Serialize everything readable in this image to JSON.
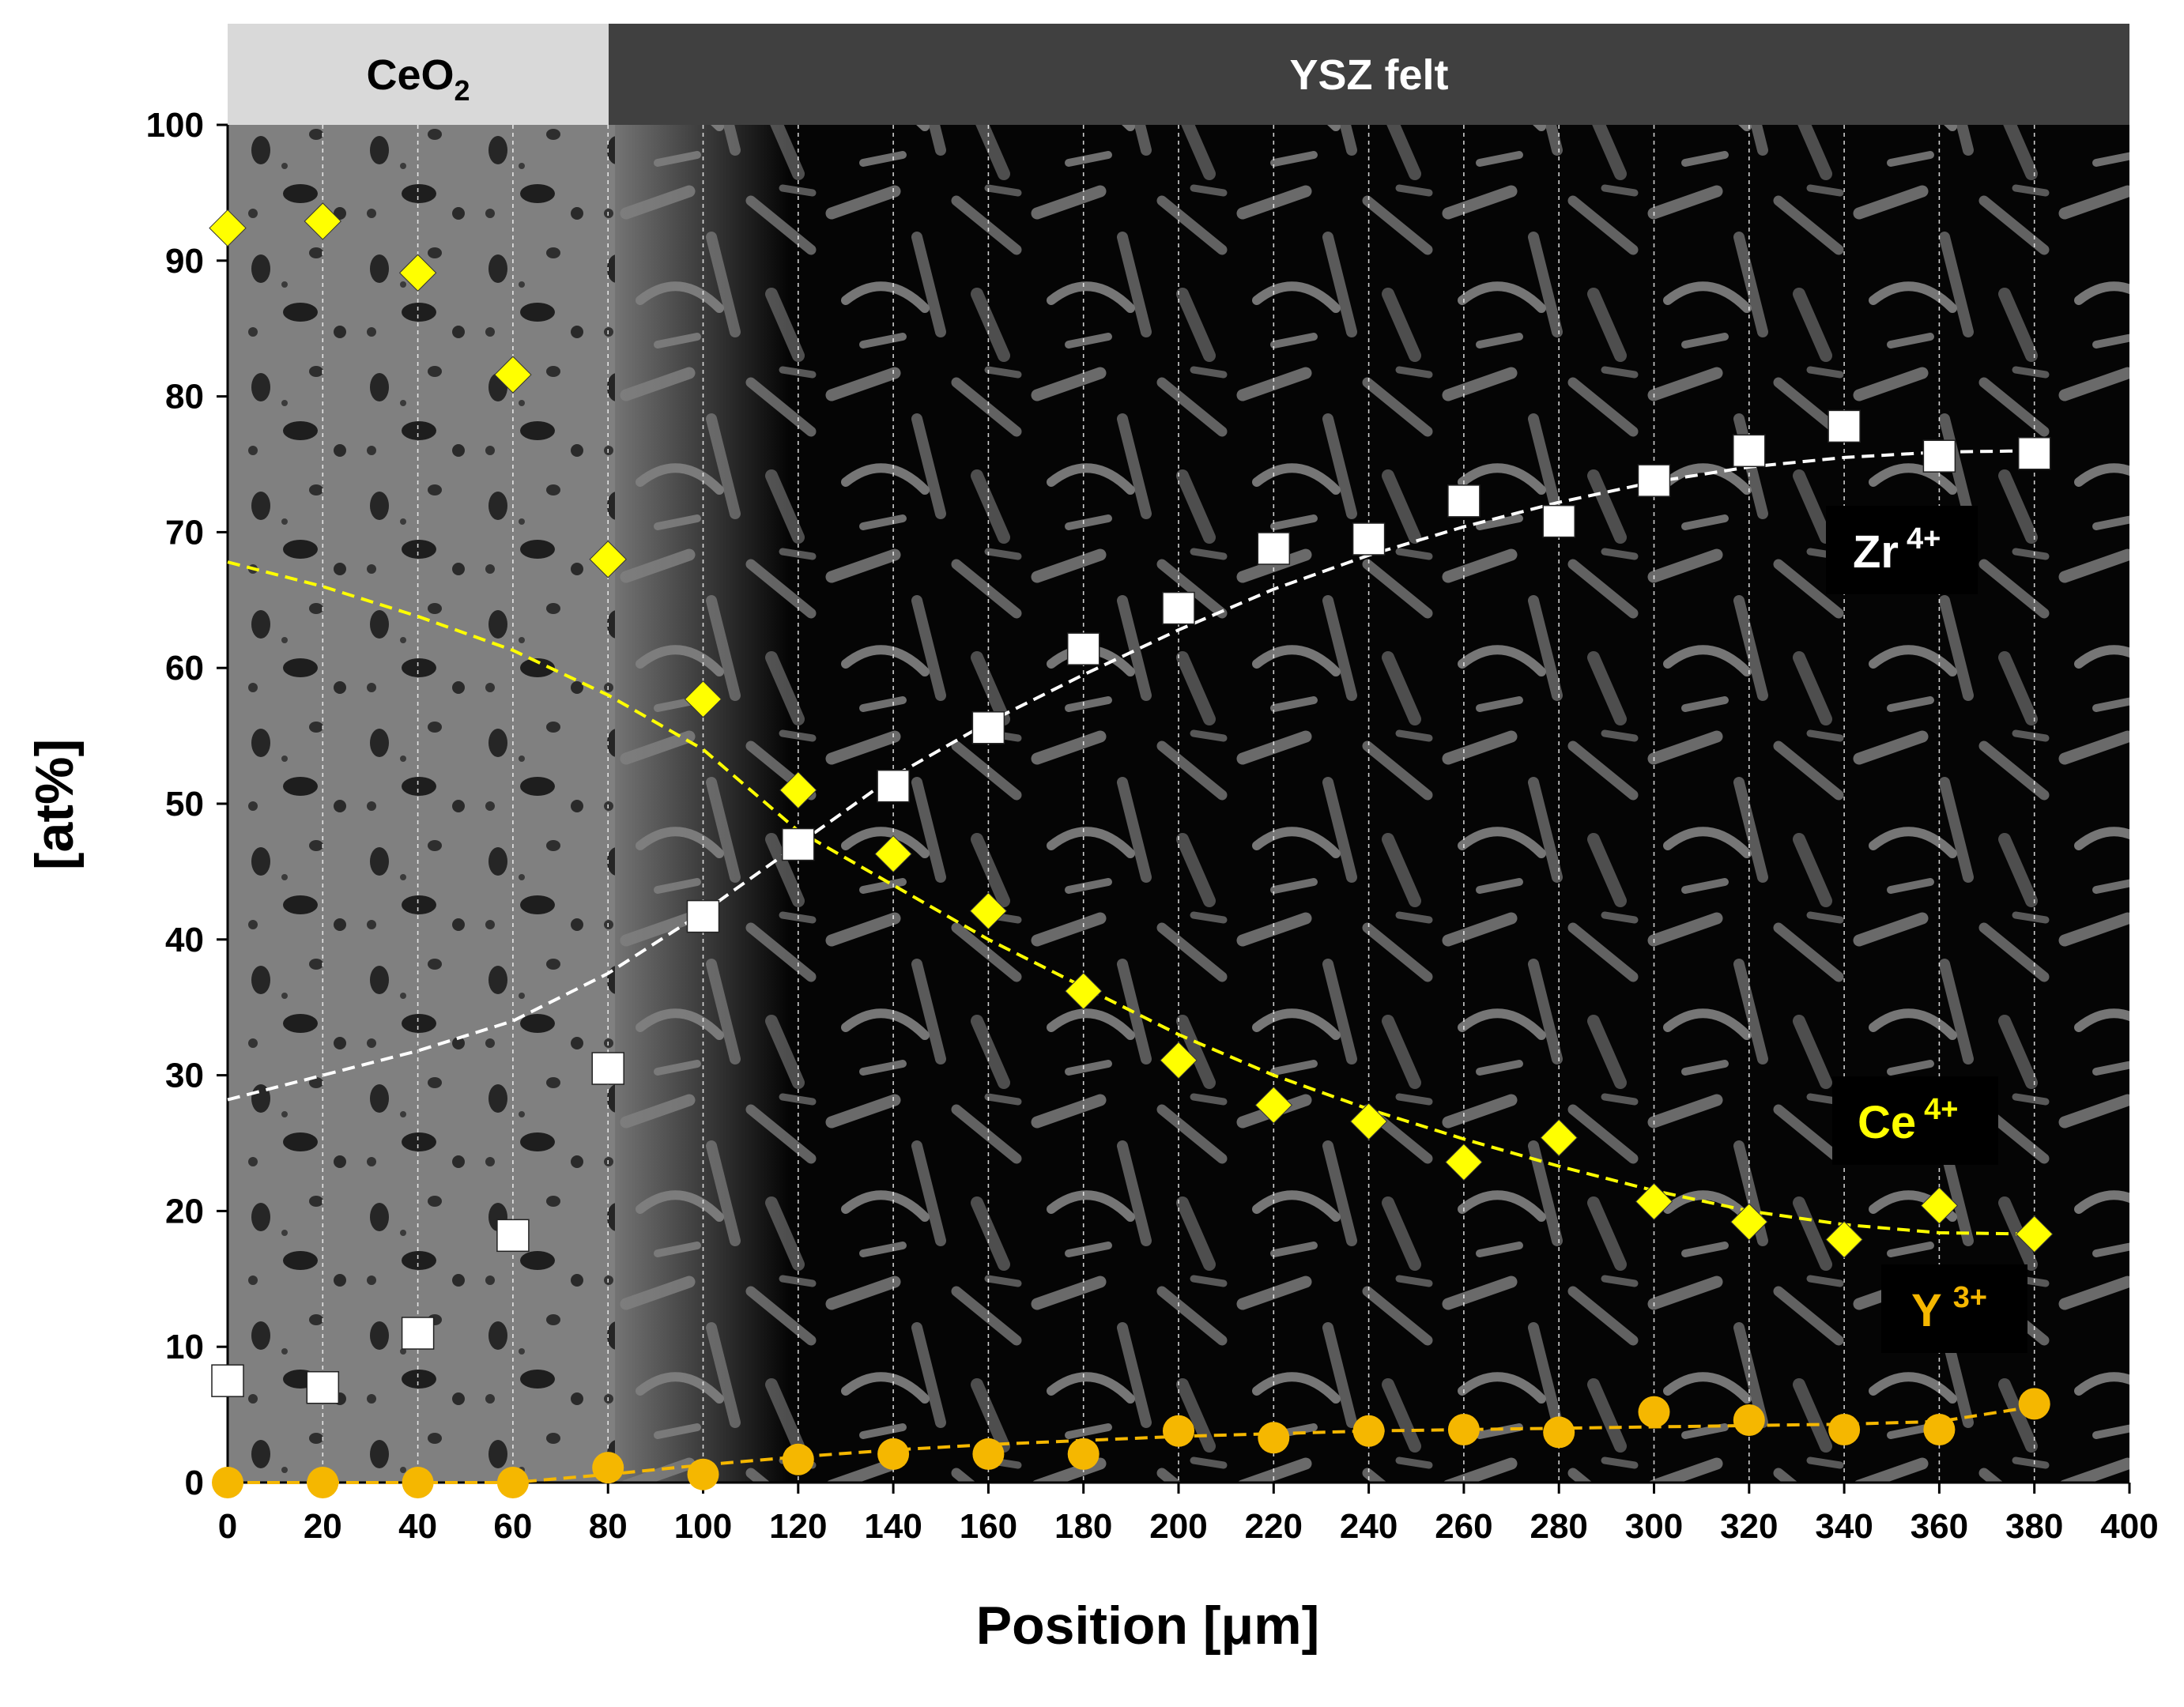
{
  "chart_data": {
    "type": "scatter",
    "title": "",
    "xlabel": "Position [μm]",
    "ylabel": "[at%]",
    "xlim": [
      0,
      400
    ],
    "ylim": [
      0,
      100
    ],
    "x_ticks": [
      0,
      20,
      40,
      60,
      80,
      100,
      120,
      140,
      160,
      180,
      200,
      220,
      240,
      260,
      280,
      300,
      320,
      340,
      360,
      380,
      400
    ],
    "y_ticks": [
      0,
      10,
      20,
      30,
      40,
      50,
      60,
      70,
      80,
      90,
      100
    ],
    "background": "SEM micrograph cross-section",
    "regions": [
      {
        "name": "CeO",
        "subscript": "2",
        "from": 0,
        "to": 80,
        "fill": "#d9d9d9",
        "text_color": "#000000"
      },
      {
        "name": "YSZ felt",
        "subscript": "",
        "from": 80,
        "to": 400,
        "fill": "#404040",
        "text_color": "#ffffff"
      }
    ],
    "x": [
      0,
      20,
      40,
      60,
      80,
      100,
      120,
      140,
      160,
      180,
      200,
      220,
      240,
      260,
      280,
      300,
      320,
      340,
      360,
      380
    ],
    "series": [
      {
        "name": "Zr",
        "superscript": "4+",
        "marker": "square",
        "color": "#ffffff",
        "values": [
          7.5,
          7.0,
          11.0,
          18.2,
          30.5,
          41.7,
          47.0,
          51.3,
          55.6,
          61.4,
          64.4,
          68.8,
          69.5,
          72.3,
          70.8,
          73.8,
          76.0,
          77.8,
          75.6,
          75.8
        ],
        "trend": [
          28.2,
          30.0,
          31.8,
          34.0,
          37.5,
          42.0,
          47.0,
          52.0,
          56.0,
          59.5,
          62.8,
          65.8,
          68.3,
          70.4,
          72.2,
          73.7,
          74.8,
          75.5,
          75.9,
          76.0
        ]
      },
      {
        "name": "Ce",
        "superscript": "4+",
        "marker": "diamond",
        "color": "#ffff00",
        "values": [
          92.4,
          92.9,
          89.1,
          81.6,
          68.0,
          57.7,
          51.0,
          46.3,
          42.1,
          36.2,
          31.1,
          27.8,
          26.6,
          23.6,
          25.4,
          20.7,
          19.2,
          17.9,
          20.4,
          18.3
        ],
        "trend": [
          67.8,
          66.0,
          63.8,
          61.3,
          58.0,
          54.0,
          48.0,
          44.0,
          40.0,
          36.5,
          33.0,
          30.0,
          27.5,
          25.3,
          23.3,
          21.5,
          20.0,
          19.0,
          18.4,
          18.3
        ]
      },
      {
        "name": "Y",
        "superscript": "3+",
        "marker": "circle",
        "color": "#f5b700",
        "values": [
          0.0,
          0.0,
          0.0,
          0.0,
          1.1,
          0.6,
          1.7,
          2.1,
          2.1,
          2.1,
          3.8,
          3.3,
          3.8,
          3.9,
          3.7,
          5.2,
          4.6,
          3.9,
          3.9,
          5.8
        ],
        "trend": [
          0.0,
          0.0,
          0.0,
          0.0,
          0.6,
          1.3,
          1.9,
          2.4,
          2.8,
          3.1,
          3.4,
          3.6,
          3.8,
          3.9,
          4.0,
          4.1,
          4.2,
          4.3,
          4.5,
          5.6
        ]
      }
    ]
  }
}
